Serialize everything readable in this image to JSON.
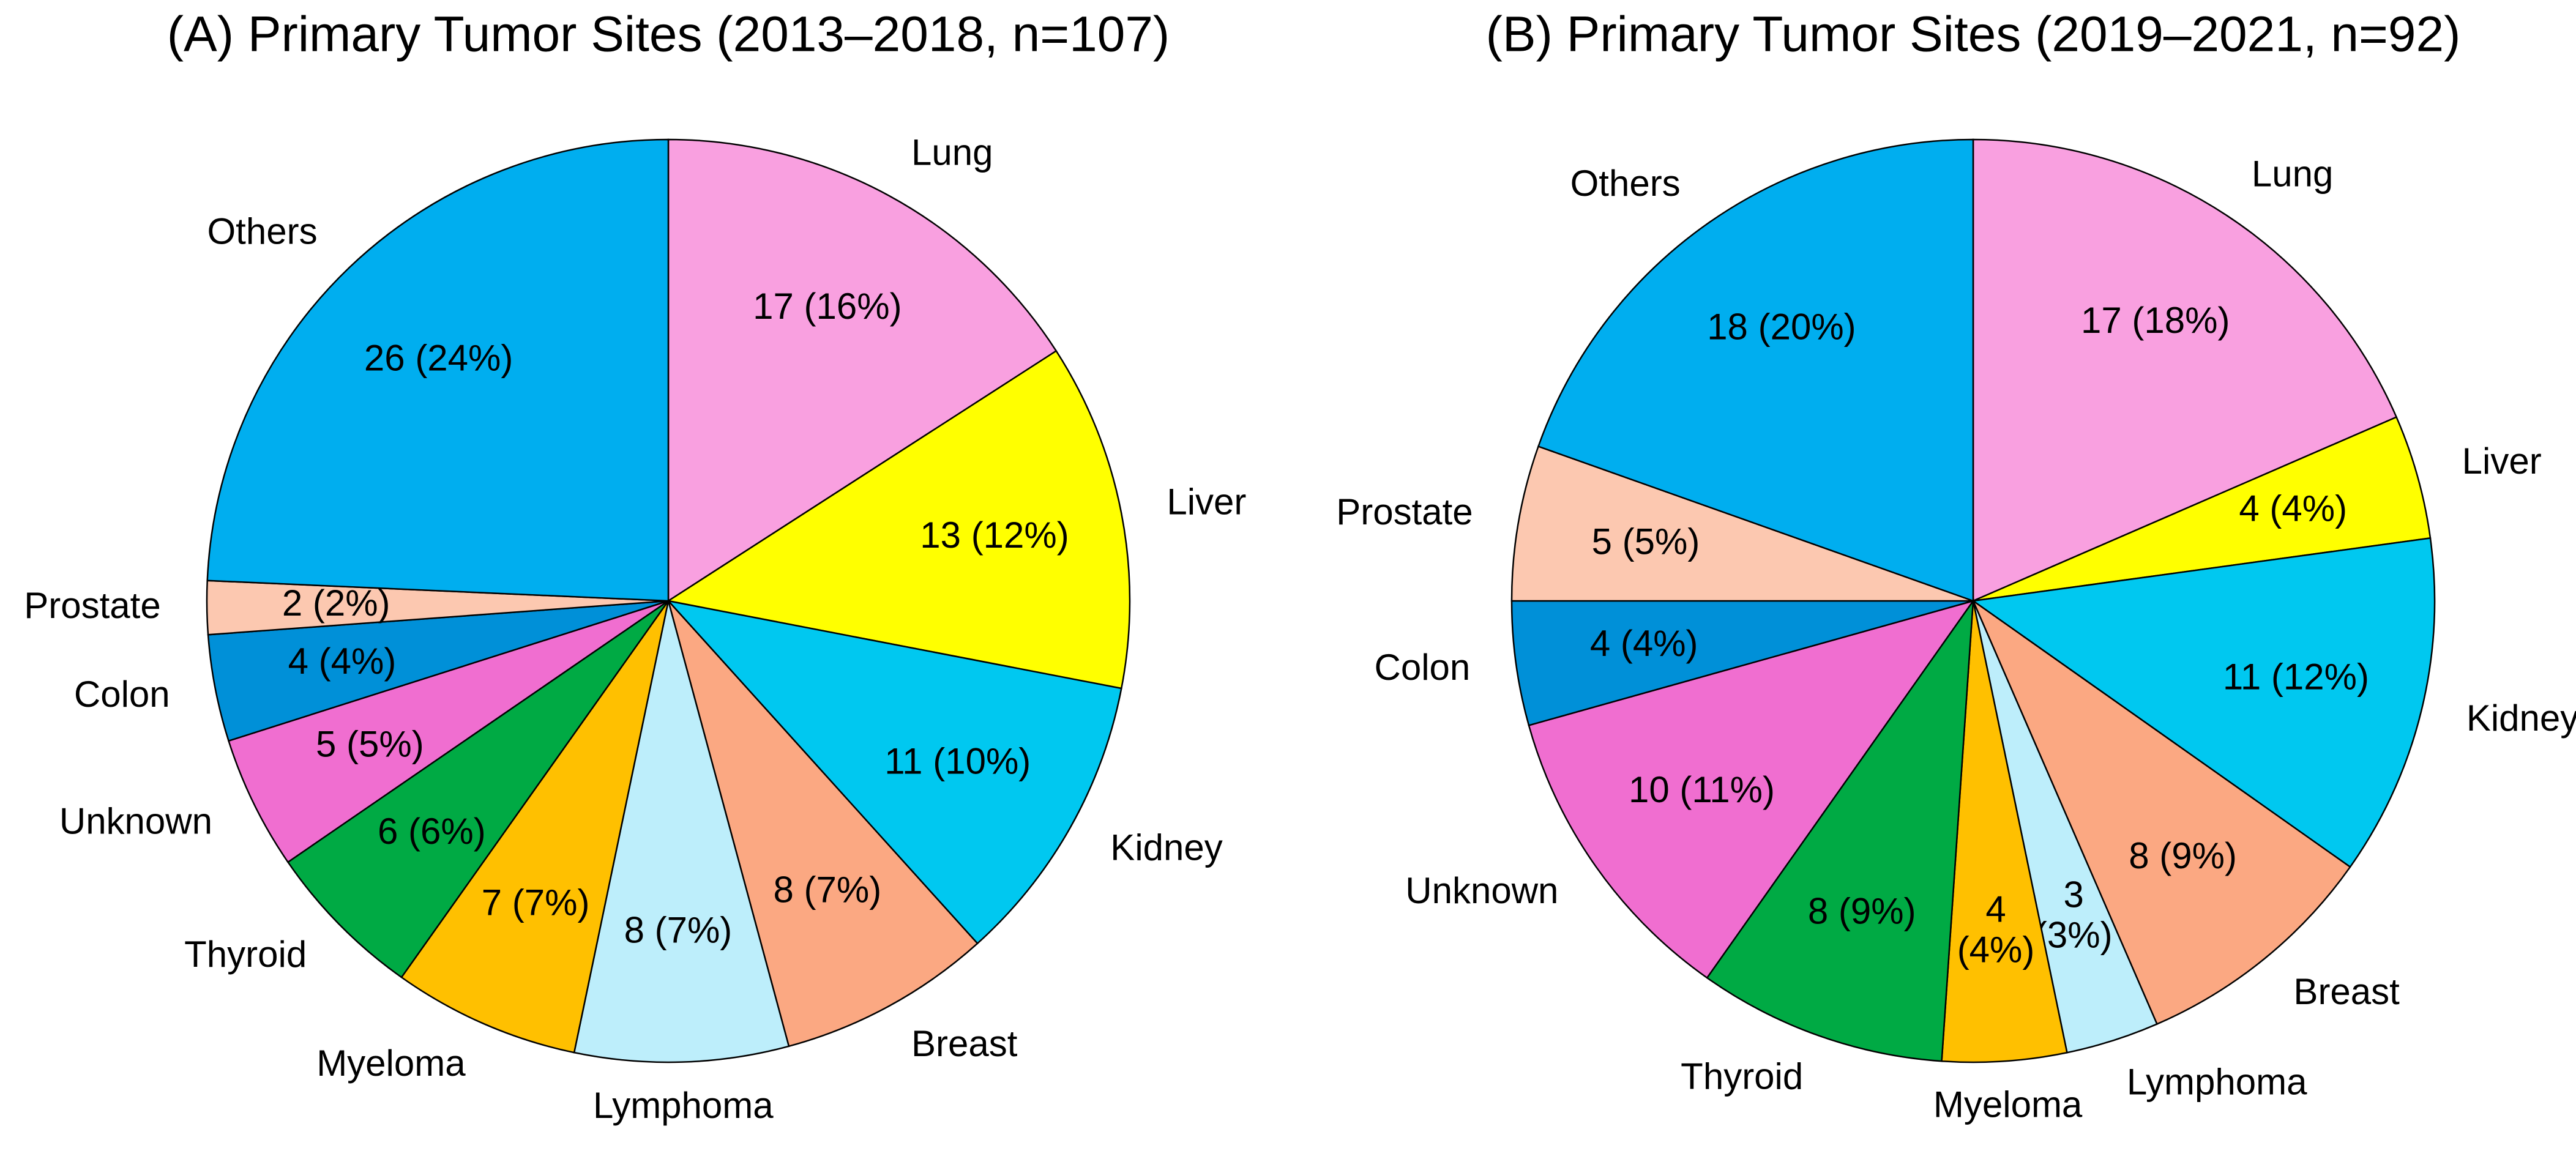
{
  "chart_data": [
    {
      "type": "pie",
      "title": "(A) Primary Tumor Sites (2013–2018, n=107)",
      "categories": [
        "Lung",
        "Liver",
        "Kidney",
        "Breast",
        "Lymphoma",
        "Myeloma",
        "Thyroid",
        "Unknown",
        "Colon",
        "Prostate",
        "Others"
      ],
      "values": [
        17,
        13,
        11,
        8,
        8,
        7,
        6,
        5,
        4,
        2,
        26
      ],
      "value_labels": [
        "17 (16%)",
        "13 (12%)",
        "11 (10%)",
        "8 (7%)",
        "8 (7%)",
        "7 (7%)",
        "6 (6%)",
        "5 (5%)",
        "4 (4%)",
        "2 (2%)",
        "26 (24%)"
      ],
      "colors": [
        "#f9a0e0",
        "#ffff00",
        "#00c8f0",
        "#fba882",
        "#bdeefb",
        "#ffc000",
        "#00aa44",
        "#f06ed0",
        "#0090d8",
        "#fcc8b0",
        "#00aeef"
      ]
    },
    {
      "type": "pie",
      "title": "(B) Primary Tumor Sites (2019–2021, n=92)",
      "categories": [
        "Lung",
        "Liver",
        "Kidney",
        "Breast",
        "Lymphoma",
        "Myeloma",
        "Thyroid",
        "Unknown",
        "Colon",
        "Prostate",
        "Others"
      ],
      "values": [
        17,
        4,
        11,
        8,
        3,
        4,
        8,
        10,
        4,
        5,
        18
      ],
      "value_labels": [
        "17 (18%)",
        "4 (4%)",
        "11 (12%)",
        "8 (9%)",
        "3\n(3%)",
        "4\n(4%)",
        "8 (9%)",
        "10 (11%)",
        "4 (4%)",
        "5 (5%)",
        "18 (20%)"
      ],
      "colors": [
        "#f9a0e0",
        "#ffff00",
        "#00c8f0",
        "#fba882",
        "#bdeefb",
        "#ffc000",
        "#00aa44",
        "#f06ed0",
        "#0090d8",
        "#fcc8b0",
        "#00aeef"
      ]
    }
  ]
}
